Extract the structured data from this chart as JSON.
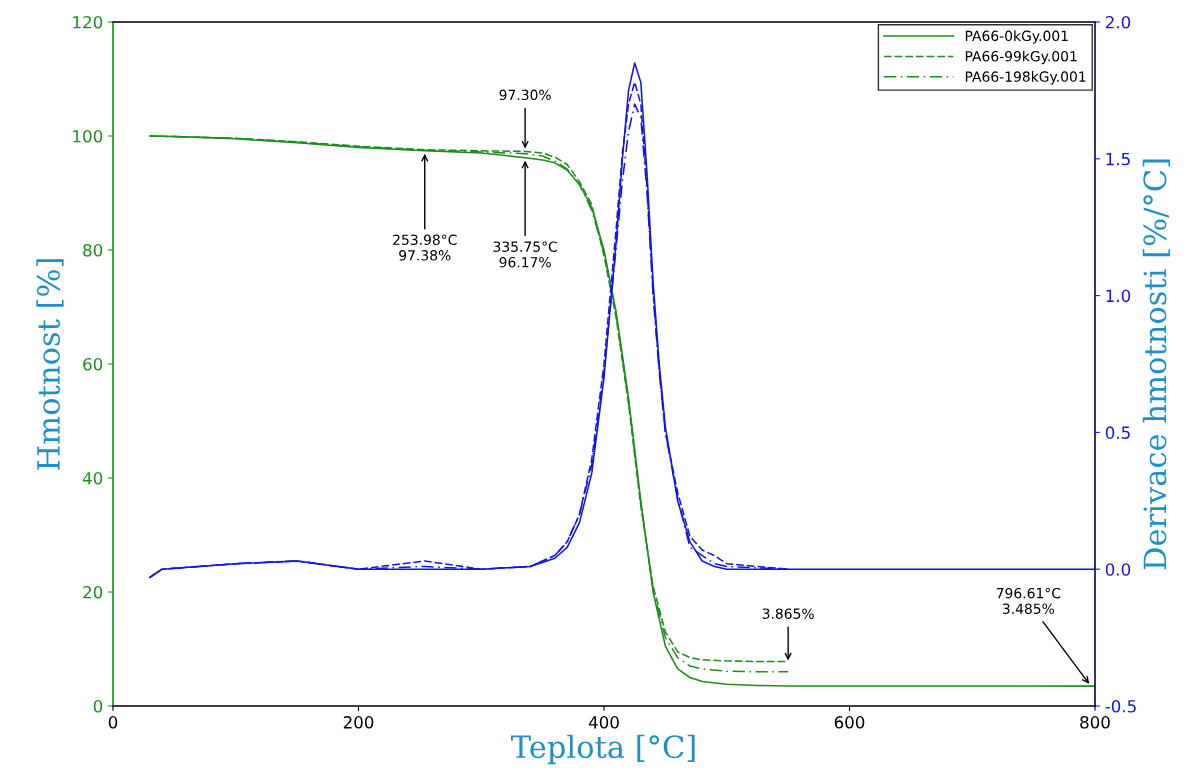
{
  "chart_data": {
    "type": "line",
    "xlabel": "Teplota [°C]",
    "ylabel": "Hmotnost [%]",
    "y2label": "Derivace hmotnosti [%/°C]",
    "xlim": [
      0,
      800
    ],
    "xticks": [
      0,
      200,
      400,
      600,
      800
    ],
    "ylim": [
      0,
      120
    ],
    "yticks": [
      0,
      20,
      40,
      60,
      80,
      100,
      120
    ],
    "y2lim": [
      -0.5,
      2.0
    ],
    "y2ticks": [
      -0.5,
      {
        "value": 0,
        "label": "0.0"
      },
      0.5,
      {
        "value": 1,
        "label": "1.0"
      },
      1.5,
      {
        "value": 2,
        "label": "2.0"
      }
    ],
    "legend": "top right",
    "grid": false,
    "marker": "none",
    "series": [
      {
        "name": "PA66-0kGy.001",
        "color": "#1e8c1e",
        "line_style": "solid",
        "x": [
          30,
          50,
          100,
          150,
          200,
          254,
          300,
          336,
          350,
          360,
          370,
          380,
          390,
          400,
          410,
          420,
          430,
          440,
          450,
          460,
          470,
          480,
          500,
          525,
          550,
          600,
          700,
          800
        ],
        "values": [
          100,
          99.9,
          99.5,
          98.8,
          98.0,
          97.4,
          97.0,
          96.2,
          95.8,
          95.3,
          94,
          91.5,
          87.5,
          80,
          69,
          54,
          36,
          20,
          10.5,
          6.5,
          5,
          4.3,
          3.8,
          3.6,
          3.5,
          3.5,
          3.5,
          3.485
        ]
      },
      {
        "name": "PA66-99kGy.001",
        "color": "#1e8c1e",
        "line_style": "dashed",
        "x": [
          30,
          50,
          100,
          150,
          200,
          254,
          300,
          336,
          350,
          360,
          370,
          380,
          390,
          400,
          410,
          420,
          430,
          440,
          450,
          460,
          470,
          480,
          500,
          525,
          550
        ],
        "values": [
          100,
          99.9,
          99.6,
          99.0,
          98.2,
          97.6,
          97.4,
          97.3,
          97.0,
          96.3,
          95,
          92,
          88,
          79,
          68,
          53,
          35,
          21,
          13,
          9.5,
          8.5,
          8.1,
          7.9,
          7.8,
          7.8
        ]
      },
      {
        "name": "PA66-198kGy.001",
        "color": "#1e8c1e",
        "line_style": "dashdot",
        "x": [
          30,
          50,
          100,
          150,
          200,
          254,
          300,
          336,
          350,
          360,
          370,
          380,
          390,
          400,
          410,
          420,
          430,
          440,
          450,
          460,
          470,
          480,
          500,
          525,
          550
        ],
        "values": [
          100,
          99.9,
          99.6,
          98.9,
          98.1,
          97.5,
          97.2,
          96.9,
          96.5,
          95.6,
          94.2,
          91.5,
          87,
          79.5,
          68.5,
          53.5,
          35.5,
          20.5,
          12,
          8.5,
          7,
          6.5,
          6.1,
          6.0,
          6.0
        ]
      },
      {
        "color": "#1414e6",
        "line_style": "solid",
        "axis": "y2",
        "x": [
          30,
          40,
          100,
          150,
          200,
          254,
          300,
          340,
          360,
          370,
          380,
          390,
          400,
          410,
          415,
          420,
          425,
          430,
          435,
          440,
          445,
          450,
          460,
          470,
          480,
          490,
          500,
          550,
          600,
          800
        ],
        "values": [
          -0.03,
          0.0,
          0.02,
          0.03,
          0.0,
          0.0,
          0.0,
          0.01,
          0.04,
          0.08,
          0.17,
          0.35,
          0.7,
          1.2,
          1.5,
          1.75,
          1.85,
          1.78,
          1.45,
          1.05,
          0.75,
          0.52,
          0.25,
          0.1,
          0.03,
          0.01,
          0.0,
          0.0,
          0.0,
          0.0
        ]
      },
      {
        "color": "#1414e6",
        "line_style": "dashed",
        "axis": "y2",
        "x": [
          30,
          40,
          100,
          150,
          200,
          254,
          300,
          340,
          360,
          370,
          380,
          390,
          400,
          410,
          415,
          420,
          425,
          430,
          435,
          440,
          445,
          450,
          460,
          470,
          480,
          490,
          500,
          550
        ],
        "values": [
          -0.03,
          0.0,
          0.02,
          0.03,
          0.0,
          0.03,
          0.0,
          0.01,
          0.05,
          0.1,
          0.2,
          0.4,
          0.75,
          1.25,
          1.52,
          1.7,
          1.78,
          1.7,
          1.4,
          1.02,
          0.73,
          0.5,
          0.28,
          0.12,
          0.07,
          0.05,
          0.02,
          0.0
        ]
      },
      {
        "color": "#1414e6",
        "line_style": "dashdot",
        "axis": "y2",
        "x": [
          30,
          40,
          100,
          150,
          200,
          254,
          300,
          340,
          360,
          370,
          380,
          390,
          400,
          410,
          415,
          420,
          425,
          430,
          435,
          440,
          445,
          450,
          460,
          470,
          480,
          490,
          500,
          550
        ],
        "values": [
          -0.03,
          0.0,
          0.02,
          0.03,
          0.0,
          0.01,
          0.0,
          0.01,
          0.05,
          0.1,
          0.2,
          0.38,
          0.72,
          1.18,
          1.42,
          1.6,
          1.7,
          1.65,
          1.38,
          1.0,
          0.72,
          0.5,
          0.26,
          0.08,
          0.05,
          0.02,
          0.01,
          0.0
        ]
      }
    ],
    "annotations": [
      {
        "text": "253.98°C\n97.38%",
        "x": 253.98,
        "y": 97.38
      },
      {
        "text": "97.30%",
        "x": 335.75,
        "y": 97.3
      },
      {
        "text": "335.75°C\n96.17%",
        "x": 335.75,
        "y": 96.17
      },
      {
        "text": "3.865%",
        "x": 550,
        "y": 7.5
      },
      {
        "text": "796.61°C\n3.485%",
        "x": 796.61,
        "y": 3.485
      }
    ]
  }
}
